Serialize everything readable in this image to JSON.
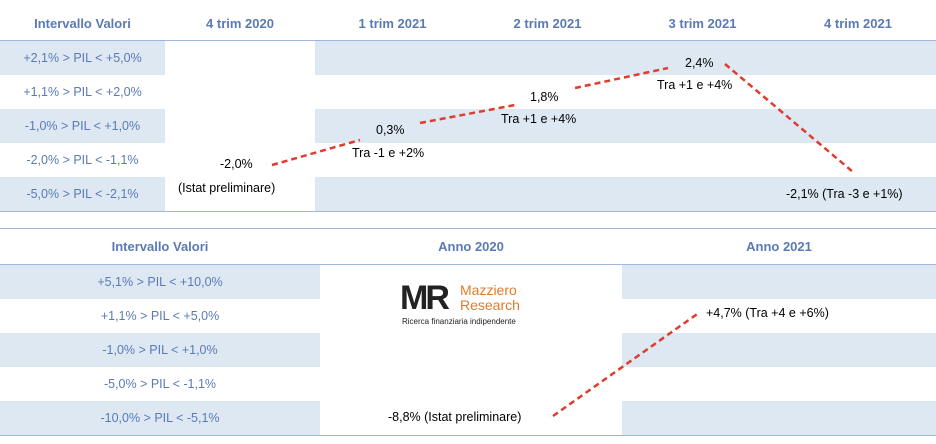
{
  "chart_data": [
    {
      "type": "line",
      "title": "",
      "columns_header": "Intervallo Valori",
      "categories": [
        "4 trim 2020",
        "1 trim 2021",
        "2 trim 2021",
        "3 trim 2021",
        "4 trim 2021"
      ],
      "ranges": [
        "+2,1% > PIL < +5,0%",
        "+1,1% > PIL < +2,0%",
        "-1,0% > PIL < +1,0%",
        "-2,0% > PIL < -1,1%",
        "-5,0% > PIL < -2,1%"
      ],
      "values": [
        -2.0,
        0.3,
        1.8,
        2.4,
        -2.1
      ],
      "value_labels": [
        "-2,0%",
        "0,3%",
        "1,8%",
        "2,4%",
        "-2,1% (Tra -3 e +1%)"
      ],
      "sub_labels": [
        "(Istat preliminare)",
        "Tra -1 e +2%",
        "Tra +1 e +4%",
        "Tra +1 e +4%",
        ""
      ]
    },
    {
      "type": "line",
      "title": "",
      "columns_header": "Intervallo Valori",
      "categories": [
        "Anno 2020",
        "Anno 2021"
      ],
      "ranges": [
        "+5,1% > PIL < +10,0%",
        "+1,1% > PIL < +5,0%",
        "-1,0% > PIL < +1,0%",
        "-5,0% > PIL < -1,1%",
        "-10,0% > PIL < -5,1%"
      ],
      "values": [
        -8.8,
        4.7
      ],
      "value_labels": [
        "-8,8% (Istat preliminare)",
        "+4,7% (Tra +4 e +6%)"
      ]
    }
  ],
  "logo": {
    "mark": "MR",
    "name_line1": "Mazziero",
    "name_line2": "Research",
    "tagline": "Ricerca finanziaria indipendente"
  },
  "colors": {
    "header_text": "#5b7ab5",
    "shade": "#dde8f3",
    "line": "#e03c2e",
    "logo_accent": "#e07b2a"
  }
}
